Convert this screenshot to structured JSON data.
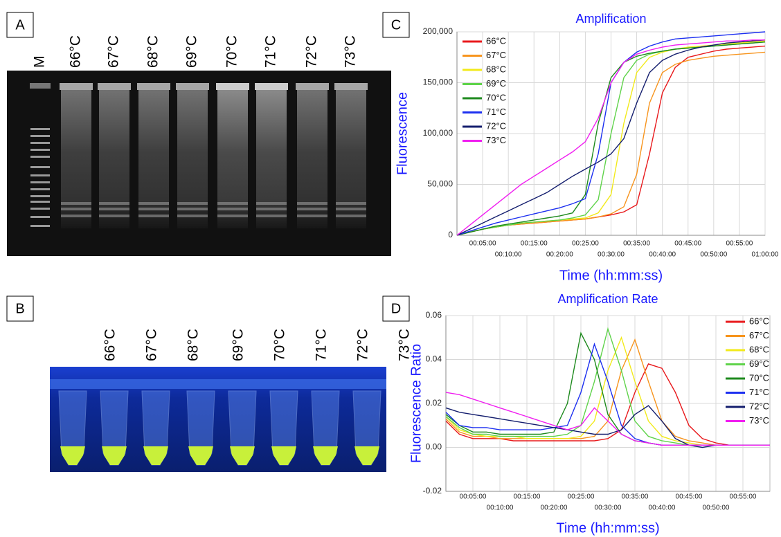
{
  "panels": {
    "A": {
      "label": "A",
      "lanes": [
        "M",
        "66°C",
        "67°C",
        "68°C",
        "69°C",
        "70°C",
        "71°C",
        "72°C",
        "73°C"
      ]
    },
    "B": {
      "label": "B",
      "tubes": [
        "66°C",
        "67°C",
        "68°C",
        "69°C",
        "70°C",
        "71°C",
        "72°C",
        "73°C"
      ]
    }
  },
  "chart_data": [
    {
      "type": "line",
      "panel_label": "C",
      "title": "Amplification",
      "x_label": "Time (hh:mm:ss)",
      "y_label": "Fluorescence",
      "legend": "upper left",
      "grid": true,
      "xlim": [
        0,
        60
      ],
      "ylim": [
        0,
        200000
      ],
      "xticks": [
        {
          "value": 5,
          "label": "00:05:00"
        },
        {
          "value": 10,
          "label": "00:10:00"
        },
        {
          "value": 15,
          "label": "00:15:00"
        },
        {
          "value": 20,
          "label": "00:20:00"
        },
        {
          "value": 25,
          "label": "00:25:00"
        },
        {
          "value": 30,
          "label": "00:30:00"
        },
        {
          "value": 35,
          "label": "00:35:00"
        },
        {
          "value": 40,
          "label": "00:40:00"
        },
        {
          "value": 45,
          "label": "00:45:00"
        },
        {
          "value": 50,
          "label": "00:50:00"
        },
        {
          "value": 55,
          "label": "00:55:00"
        },
        {
          "value": 60,
          "label": "01:00:00"
        }
      ],
      "yticks": [
        0,
        {
          "value": 50000,
          "label": "50,000"
        },
        {
          "value": 100000,
          "label": "100,000"
        },
        {
          "value": 150000,
          "label": "150,000"
        },
        {
          "value": 200000,
          "label": "200,000"
        }
      ],
      "x": [
        0,
        2.5,
        5,
        7.5,
        10,
        12.5,
        15,
        17.5,
        20,
        22.5,
        25,
        27.5,
        30,
        32.5,
        35,
        37.5,
        40,
        42.5,
        45,
        47.5,
        50,
        52.5,
        55,
        57.5,
        60
      ],
      "series": [
        {
          "name": "66°C",
          "color": "#e8191c",
          "values": [
            0,
            3000,
            6000,
            8000,
            10000,
            11000,
            12000,
            13000,
            14000,
            15000,
            16000,
            18000,
            20000,
            23000,
            30000,
            80000,
            140000,
            165000,
            175000,
            178000,
            181000,
            183000,
            184000,
            185000,
            186000
          ]
        },
        {
          "name": "67°C",
          "color": "#f7941d",
          "values": [
            0,
            3000,
            6000,
            8000,
            10000,
            11000,
            12000,
            13000,
            14000,
            15000,
            16000,
            18000,
            21000,
            28000,
            60000,
            130000,
            160000,
            168000,
            172000,
            174000,
            176000,
            177000,
            178000,
            179000,
            180000
          ]
        },
        {
          "name": "68°C",
          "color": "#f2ea1a",
          "values": [
            0,
            3000,
            6000,
            8000,
            10000,
            12000,
            13000,
            14000,
            15000,
            16000,
            17000,
            22000,
            40000,
            110000,
            160000,
            175000,
            180000,
            183000,
            185000,
            186000,
            187000,
            188000,
            189000,
            190000,
            191000
          ]
        },
        {
          "name": "69°C",
          "color": "#5fd34a",
          "values": [
            0,
            3000,
            6000,
            8000,
            10000,
            12000,
            13000,
            14000,
            15000,
            17000,
            20000,
            35000,
            100000,
            155000,
            172000,
            178000,
            181000,
            183000,
            184000,
            185000,
            186000,
            187000,
            188000,
            189000,
            190000
          ]
        },
        {
          "name": "70°C",
          "color": "#1e8a1e",
          "values": [
            0,
            3000,
            6000,
            9000,
            11000,
            13000,
            15000,
            17000,
            19000,
            22000,
            40000,
            110000,
            155000,
            170000,
            176000,
            179000,
            181000,
            183000,
            184000,
            185000,
            186000,
            187000,
            188000,
            189000,
            190000
          ]
        },
        {
          "name": "71°C",
          "color": "#1c2ff0",
          "values": [
            0,
            4000,
            8000,
            12000,
            15000,
            18000,
            21000,
            24000,
            27000,
            31000,
            36000,
            80000,
            150000,
            170000,
            180000,
            186000,
            190000,
            193000,
            194000,
            195000,
            196000,
            197000,
            198000,
            199000,
            200000
          ]
        },
        {
          "name": "72°C",
          "color": "#141e6e",
          "values": [
            0,
            6000,
            12000,
            18000,
            24000,
            30000,
            36000,
            42000,
            50000,
            58000,
            65000,
            72000,
            80000,
            95000,
            130000,
            160000,
            172000,
            178000,
            182000,
            185000,
            187000,
            189000,
            190000,
            191000,
            192000
          ]
        },
        {
          "name": "73°C",
          "color": "#f01ef0",
          "values": [
            0,
            10000,
            20000,
            30000,
            40000,
            50000,
            58000,
            66000,
            74000,
            82000,
            92000,
            115000,
            150000,
            170000,
            178000,
            182000,
            185000,
            187000,
            188000,
            189000,
            190000,
            191000,
            191000,
            192000,
            192000
          ]
        }
      ]
    },
    {
      "type": "line",
      "panel_label": "D",
      "title": "Amplification Rate",
      "x_label": "Time (hh:mm:ss)",
      "y_label": "Fluorescence Ratio",
      "legend": "right",
      "grid": true,
      "xlim": [
        0,
        60
      ],
      "ylim": [
        -0.02,
        0.06
      ],
      "xticks": [
        {
          "value": 5,
          "label": "00:05:00"
        },
        {
          "value": 10,
          "label": "00:10:00"
        },
        {
          "value": 15,
          "label": "00:15:00"
        },
        {
          "value": 20,
          "label": "00:20:00"
        },
        {
          "value": 25,
          "label": "00:25:00"
        },
        {
          "value": 30,
          "label": "00:30:00"
        },
        {
          "value": 35,
          "label": "00:35:00"
        },
        {
          "value": 40,
          "label": "00:40:00"
        },
        {
          "value": 45,
          "label": "00:45:00"
        },
        {
          "value": 50,
          "label": "00:50:00"
        },
        {
          "value": 55,
          "label": "00:55:00"
        }
      ],
      "yticks": [
        -0.02,
        {
          "value": 0,
          "label": "0.00"
        },
        0.02,
        0.04,
        0.06
      ],
      "x": [
        0,
        2.5,
        5,
        7.5,
        10,
        12.5,
        15,
        17.5,
        20,
        22.5,
        25,
        27.5,
        30,
        32.5,
        35,
        37.5,
        40,
        42.5,
        45,
        47.5,
        50,
        52.5,
        55,
        57.5,
        60
      ],
      "series": [
        {
          "name": "66°C",
          "color": "#e8191c",
          "values": [
            0.012,
            0.006,
            0.004,
            0.004,
            0.004,
            0.003,
            0.003,
            0.003,
            0.003,
            0.003,
            0.003,
            0.003,
            0.004,
            0.008,
            0.025,
            0.038,
            0.036,
            0.025,
            0.01,
            0.004,
            0.002,
            0.001,
            0.001,
            0.001,
            0.001
          ]
        },
        {
          "name": "67°C",
          "color": "#f7941d",
          "values": [
            0.013,
            0.007,
            0.005,
            0.005,
            0.004,
            0.004,
            0.004,
            0.004,
            0.004,
            0.004,
            0.004,
            0.005,
            0.012,
            0.035,
            0.049,
            0.03,
            0.012,
            0.005,
            0.003,
            0.002,
            0.001,
            0.001,
            0.001,
            0.001,
            0.001
          ]
        },
        {
          "name": "68°C",
          "color": "#f2ea1a",
          "values": [
            0.014,
            0.008,
            0.006,
            0.005,
            0.005,
            0.005,
            0.004,
            0.004,
            0.004,
            0.004,
            0.005,
            0.012,
            0.035,
            0.05,
            0.03,
            0.012,
            0.005,
            0.003,
            0.002,
            0.001,
            0.001,
            0.001,
            0.001,
            0.001,
            0.001
          ]
        },
        {
          "name": "69°C",
          "color": "#5fd34a",
          "values": [
            0.014,
            0.009,
            0.006,
            0.006,
            0.005,
            0.005,
            0.005,
            0.005,
            0.005,
            0.006,
            0.01,
            0.03,
            0.054,
            0.035,
            0.012,
            0.005,
            0.003,
            0.002,
            0.001,
            0.001,
            0.001,
            0.001,
            0.001,
            0.001,
            0.001
          ]
        },
        {
          "name": "70°C",
          "color": "#1e8a1e",
          "values": [
            0.015,
            0.01,
            0.007,
            0.007,
            0.006,
            0.006,
            0.006,
            0.006,
            0.007,
            0.02,
            0.052,
            0.04,
            0.015,
            0.006,
            0.003,
            0.002,
            0.001,
            0.001,
            0.001,
            0.001,
            0.001,
            0.001,
            0.001,
            0.001,
            0.001
          ]
        },
        {
          "name": "71°C",
          "color": "#1c2ff0",
          "values": [
            0.016,
            0.01,
            0.009,
            0.009,
            0.008,
            0.008,
            0.008,
            0.008,
            0.009,
            0.01,
            0.025,
            0.047,
            0.03,
            0.01,
            0.004,
            0.002,
            0.001,
            0.001,
            0.001,
            0.001,
            0.001,
            0.001,
            0.001,
            0.001,
            0.001
          ]
        },
        {
          "name": "72°C",
          "color": "#141e6e",
          "values": [
            0.018,
            0.016,
            0.015,
            0.014,
            0.013,
            0.012,
            0.011,
            0.01,
            0.009,
            0.008,
            0.007,
            0.006,
            0.006,
            0.008,
            0.015,
            0.019,
            0.012,
            0.004,
            0.001,
            0.0,
            0.001,
            0.001,
            0.001,
            0.001,
            0.001
          ]
        },
        {
          "name": "73°C",
          "color": "#f01ef0",
          "values": [
            0.025,
            0.024,
            0.022,
            0.02,
            0.018,
            0.016,
            0.014,
            0.012,
            0.01,
            0.008,
            0.01,
            0.018,
            0.012,
            0.006,
            0.003,
            0.002,
            0.001,
            0.001,
            0.001,
            0.001,
            0.001,
            0.001,
            0.001,
            0.001,
            0.001
          ]
        }
      ]
    }
  ]
}
